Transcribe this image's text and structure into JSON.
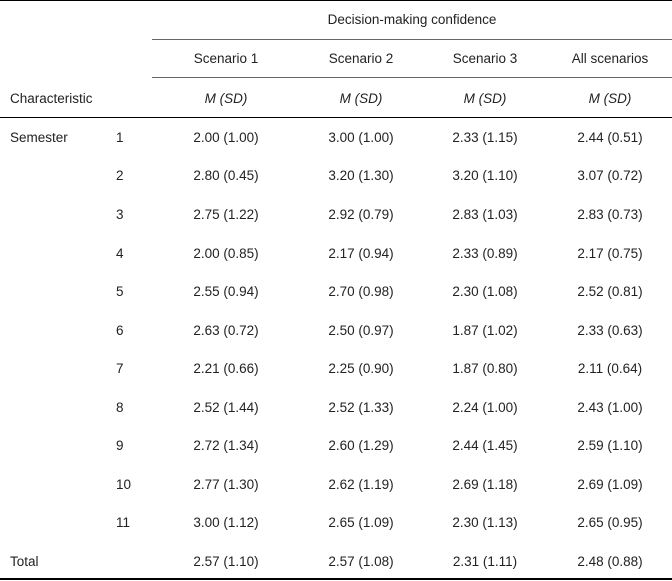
{
  "header": {
    "group_label": "Decision-making confidence",
    "characteristic_label": "Characteristic",
    "columns": [
      "Scenario 1",
      "Scenario 2",
      "Scenario 3",
      "All scenarios"
    ],
    "stat_labels": [
      "M (SD)",
      "M (SD)",
      "M (SD)",
      "M (SD)"
    ]
  },
  "body": {
    "group_name": "Semester",
    "rows": [
      {
        "label": "1",
        "values": [
          "2.00 (1.00)",
          "3.00 (1.00)",
          "2.33 (1.15)",
          "2.44 (0.51)"
        ]
      },
      {
        "label": "2",
        "values": [
          "2.80 (0.45)",
          "3.20 (1.30)",
          "3.20 (1.10)",
          "3.07 (0.72)"
        ]
      },
      {
        "label": "3",
        "values": [
          "2.75 (1.22)",
          "2.92 (0.79)",
          "2.83 (1.03)",
          "2.83 (0.73)"
        ]
      },
      {
        "label": "4",
        "values": [
          "2.00 (0.85)",
          "2.17 (0.94)",
          "2.33 (0.89)",
          "2.17 (0.75)"
        ]
      },
      {
        "label": "5",
        "values": [
          "2.55 (0.94)",
          "2.70 (0.98)",
          "2.30 (1.08)",
          "2.52 (0.81)"
        ]
      },
      {
        "label": "6",
        "values": [
          "2.63 (0.72)",
          "2.50 (0.97)",
          "1.87 (1.02)",
          "2.33 (0.63)"
        ]
      },
      {
        "label": "7",
        "values": [
          "2.21 (0.66)",
          "2.25 (0.90)",
          "1.87 (0.80)",
          "2.11 (0.64)"
        ]
      },
      {
        "label": "8",
        "values": [
          "2.52 (1.44)",
          "2.52 (1.33)",
          "2.24 (1.00)",
          "2.43 (1.00)"
        ]
      },
      {
        "label": "9",
        "values": [
          "2.72 (1.34)",
          "2.60 (1.29)",
          "2.44 (1.45)",
          "2.59 (1.10)"
        ]
      },
      {
        "label": "10",
        "values": [
          "2.77 (1.30)",
          "2.62 (1.19)",
          "2.69 (1.18)",
          "2.69 (1.09)"
        ]
      },
      {
        "label": "11",
        "values": [
          "3.00 (1.12)",
          "2.65 (1.09)",
          "2.30 (1.13)",
          "2.65 (0.95)"
        ]
      }
    ],
    "total": {
      "label": "Total",
      "values": [
        "2.57 (1.10)",
        "2.57 (1.08)",
        "2.31 (1.11)",
        "2.48 (0.88)"
      ]
    }
  }
}
